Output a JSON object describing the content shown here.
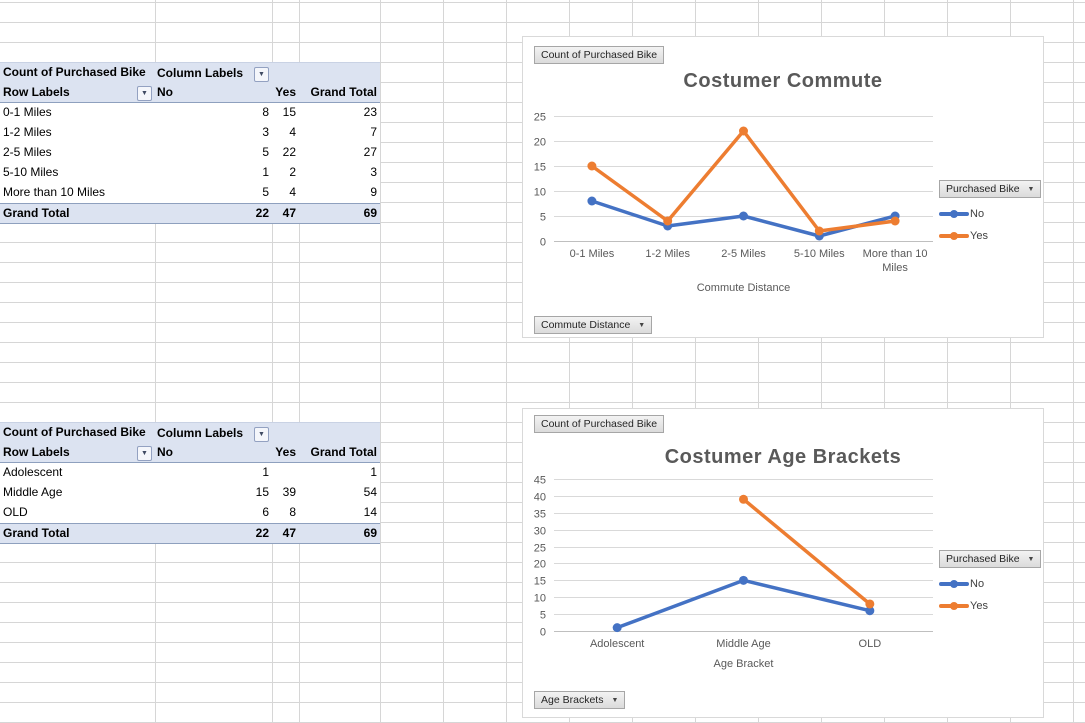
{
  "icons": {
    "dropdown_arrow": "▼"
  },
  "colors": {
    "series_no": "#4472C4",
    "series_yes": "#ED7D31",
    "pivot_header_fill": "#DCE3F1",
    "gridline": "#D6D6D6",
    "chart_gridline": "#D9D9D9",
    "chart_text": "#595959"
  },
  "pivot_tables": [
    {
      "value_field": "Count of Purchased Bike",
      "column_labels": "Column Labels",
      "row_labels": "Row Labels",
      "col_headers": [
        "No",
        "Yes",
        "Grand Total"
      ],
      "rows": [
        {
          "label": "0-1 Miles",
          "no": 8,
          "yes": 15,
          "total": 23
        },
        {
          "label": "1-2 Miles",
          "no": 3,
          "yes": 4,
          "total": 7
        },
        {
          "label": "2-5 Miles",
          "no": 5,
          "yes": 22,
          "total": 27
        },
        {
          "label": "5-10 Miles",
          "no": 1,
          "yes": 2,
          "total": 3
        },
        {
          "label": "More than 10 Miles",
          "no": 5,
          "yes": 4,
          "total": 9
        }
      ],
      "grand_total": {
        "label": "Grand Total",
        "no": 22,
        "yes": 47,
        "total": 69
      }
    },
    {
      "value_field": "Count of Purchased Bike",
      "column_labels": "Column Labels",
      "row_labels": "Row Labels",
      "col_headers": [
        "No",
        "Yes",
        "Grand Total"
      ],
      "rows": [
        {
          "label": "Adolescent",
          "no": 1,
          "yes": null,
          "total": 1
        },
        {
          "label": "Middle Age",
          "no": 15,
          "yes": 39,
          "total": 54
        },
        {
          "label": "OLD",
          "no": 6,
          "yes": 8,
          "total": 14
        }
      ],
      "grand_total": {
        "label": "Grand Total",
        "no": 22,
        "yes": 47,
        "total": 69
      }
    }
  ],
  "chart_data": [
    {
      "type": "line",
      "title": "Costumer Commute",
      "xlabel": "Commute Distance",
      "ylabel": "",
      "categories": [
        "0-1 Miles",
        "1-2 Miles",
        "2-5 Miles",
        "5-10 Miles",
        "More than 10 Miles"
      ],
      "series": [
        {
          "name": "No",
          "color": "#4472C4",
          "values": [
            8,
            3,
            5,
            1,
            5
          ]
        },
        {
          "name": "Yes",
          "color": "#ED7D31",
          "values": [
            15,
            4,
            22,
            2,
            4
          ]
        }
      ],
      "ylim": [
        0,
        25
      ],
      "ystep": 5,
      "grid": true,
      "legend_position": "right",
      "buttons": {
        "value_field": "Count of Purchased Bike",
        "axis_field": "Commute Distance",
        "legend_field": "Purchased Bike"
      }
    },
    {
      "type": "line",
      "title": "Costumer Age Brackets",
      "xlabel": "Age Bracket",
      "ylabel": "",
      "categories": [
        "Adolescent",
        "Middle Age",
        "OLD"
      ],
      "series": [
        {
          "name": "No",
          "color": "#4472C4",
          "values": [
            1,
            15,
            6
          ]
        },
        {
          "name": "Yes",
          "color": "#ED7D31",
          "values": [
            null,
            39,
            8
          ]
        }
      ],
      "ylim": [
        0,
        45
      ],
      "ystep": 5,
      "grid": true,
      "legend_position": "right",
      "buttons": {
        "value_field": "Count of Purchased Bike",
        "axis_field": "Age Brackets",
        "legend_field": "Purchased Bike"
      }
    }
  ]
}
